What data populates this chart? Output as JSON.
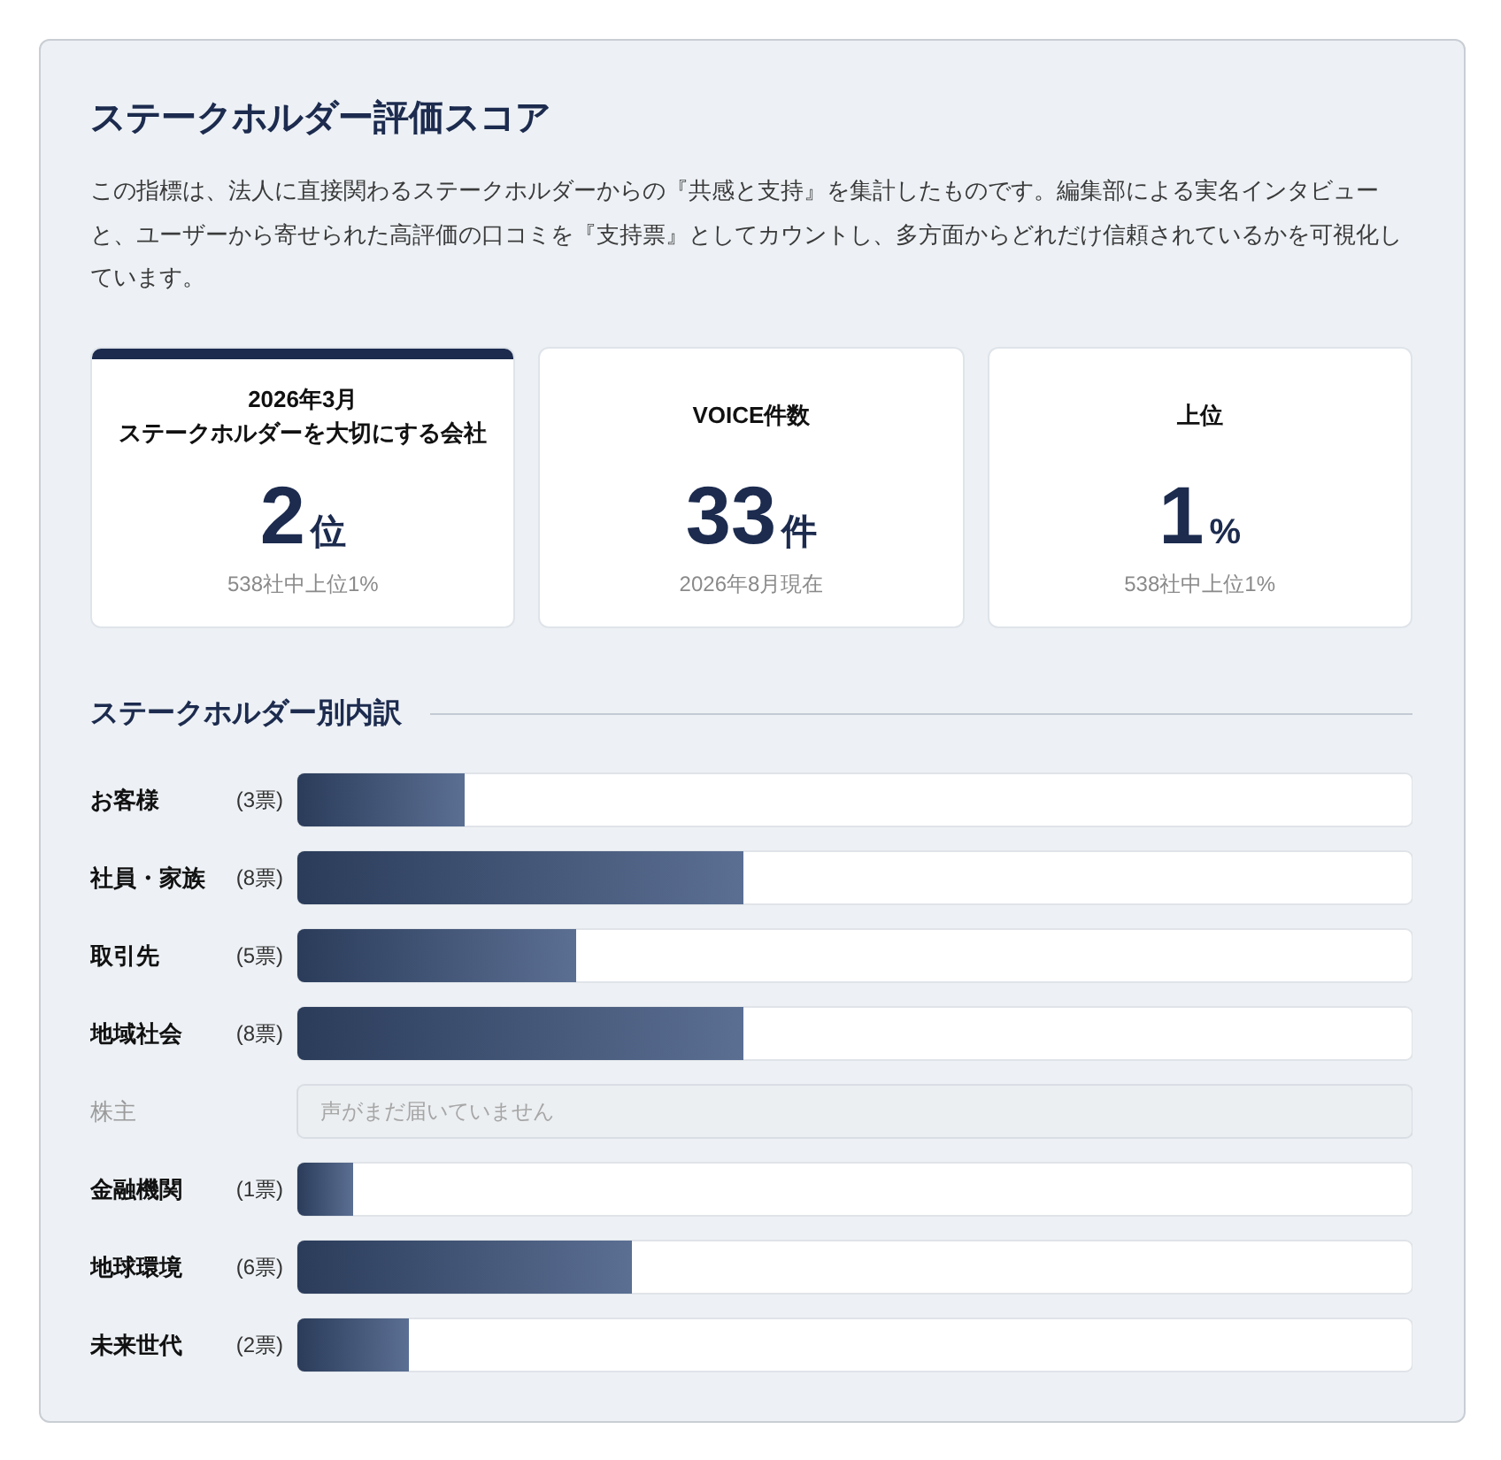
{
  "chart_data": [
    {
      "type": "other",
      "title": "ステークホルダー評価スコア",
      "subtitle": "この指標は、法人に直接関わるステークホルダーからの『共感と支持』を集計したものです。編集部による実名インタビューと、ユーザーから寄せられた高評価の口コミを『支持票』としてカウントし、多方面からどれだけ信頼されているかを可視化しています。"
    },
    {
      "type": "other",
      "title": "2026年3月ステークホルダーを大切にする会社",
      "annotations": [
        "2位",
        "538社中上位1%"
      ]
    },
    {
      "type": "other",
      "title": "VOICE件数",
      "annotations": [
        "33件",
        "2026年8月現在"
      ]
    },
    {
      "type": "other",
      "title": "上位",
      "annotations": [
        "1%",
        "538社中上位1%"
      ]
    },
    {
      "type": "bar",
      "orientation": "horizontal",
      "title": "ステークホルダー別内訳",
      "categories": [
        "お客様",
        "社員・家族",
        "取引先",
        "地域社会",
        "株主",
        "金融機関",
        "地球環境",
        "未来世代"
      ],
      "values": [
        3,
        8,
        5,
        8,
        0,
        1,
        6,
        2
      ],
      "value_labels": [
        "(3票)",
        "(8票)",
        "(5票)",
        "(8票)",
        null,
        "(1票)",
        "(6票)",
        "(2票)"
      ],
      "color": "#3e5580",
      "xlim": [
        0,
        20
      ],
      "tick_labels": "y",
      "annotations": [
        "声がまだ届いていません"
      ]
    }
  ]
}
